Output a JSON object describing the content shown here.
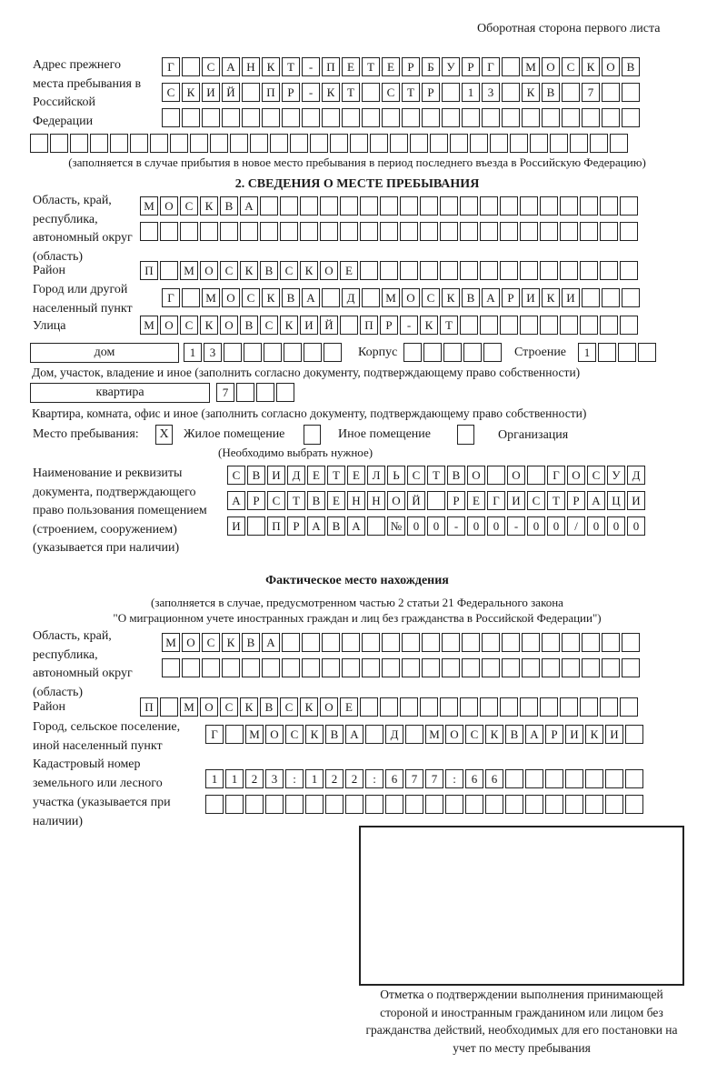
{
  "header": "Оборотная сторона первого листа",
  "previous_address": {
    "label": "Адрес прежнего места пребывания в Российской Федерации",
    "rows": [
      "Г САНКТ-ПЕТЕРБУРГ МОСКОВ",
      "СКИЙ ПР-КТ СТР 13 КВ 7",
      "",
      ""
    ],
    "note": "(заполняется в случае прибытия в новое место пребывания в период последнего въезда в Российскую Федерацию)"
  },
  "section2": {
    "title": "2. СВЕДЕНИЯ О МЕСТЕ ПРЕБЫВАНИЯ",
    "region_label": "Область, край, республика, автономный округ (область)",
    "region_rows": [
      "МОСКВА",
      ""
    ],
    "district_label": "Район",
    "district": "П МОСКВСКОЕ",
    "city_label": "Город или другой населенный пункт",
    "city": "Г МОСКВА Д МОСКВАРИКИ",
    "street_label": "Улица",
    "street": "МОСКОВСКИЙ ПР-КТ",
    "house_type": "дом",
    "house_number": "13",
    "building_label": "Корпус",
    "building": "",
    "structure_label": "Строение",
    "structure": "1",
    "house_note": "Дом, участок, владение и иное (заполнить согласно документу, подтверждающему право собственности)",
    "apartment_type": "квартира",
    "apartment_number": "7",
    "apartment_note": "Квартира, комната, офис и иное (заполнить согласно документу, подтверждающему право собственности)",
    "stay_place_label": "Место пребывания:",
    "options": [
      {
        "label": "Жилое помещение",
        "mark": "X",
        "checked": true
      },
      {
        "label": "Иное помещение",
        "mark": "",
        "checked": false
      },
      {
        "label": "Организация",
        "mark": "",
        "checked": false
      }
    ],
    "choose_note": "(Необходимо выбрать нужное)",
    "document_label": "Наименование и реквизиты документа, подтверждающего право пользования помещением (строением, сооружением) (указывается при наличии)",
    "document_rows": [
      "СВИДЕТЕЛЬСТВО О ГОСУД",
      "АРСТВЕННОЙ РЕГИСТРАЦИ",
      "И ПРАВА №00-00-00/000"
    ]
  },
  "actual_location": {
    "title": "Фактическое место нахождения",
    "note1": "(заполняется в случае, предусмотренном частью 2 статьи 21 Федерального закона",
    "note2": "\"О миграционном учете иностранных граждан и лиц без гражданства в Российской Федерации\")",
    "region_label": "Область, край, республика, автономный округ (область)",
    "region_rows": [
      "МОСКВА",
      ""
    ],
    "district_label": "Район",
    "district": "П МОСКВСКОЕ",
    "city_label": "Город, сельское поселение, иной населенный пункт",
    "city": "Г МОСКВА Д МОСКВАРИКИ",
    "cadastral_label": "Кадастровый номер земельного или лесного участка (указывается при наличии)",
    "cadastral_rows": [
      "1123:122:677:66",
      ""
    ]
  },
  "stamp": {
    "caption": "Отметка о подтверждении выполнения принимающей стороной и иностранным гражданином или лицом без гражданства действий, необходимых для его постановки на учет по месту пребывания"
  }
}
